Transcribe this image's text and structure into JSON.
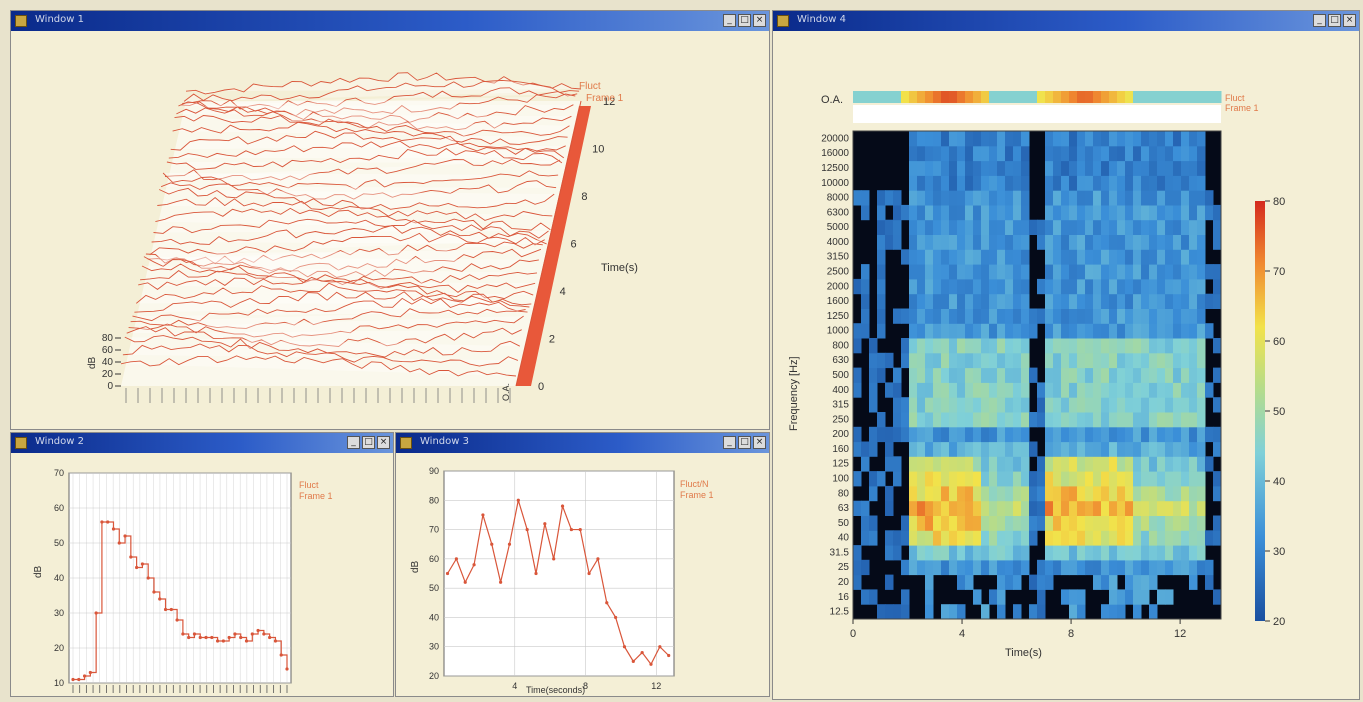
{
  "windows": {
    "w3d": {
      "title": "Window 1"
    },
    "ws1": {
      "title": "Window 2"
    },
    "ws2": {
      "title": "Window 3"
    },
    "wsp": {
      "title": "Window 4"
    }
  },
  "controls": {
    "min": "_",
    "max": "□",
    "close": "×"
  },
  "plot3d": {
    "legend": [
      "Fluct",
      "Frame 1"
    ],
    "zlabel": "dB",
    "ylabel": "Time(s)",
    "zticks": [
      "0",
      "20",
      "40",
      "60",
      "80"
    ],
    "yticks": [
      "0",
      "2",
      "4",
      "6",
      "8",
      "10",
      "12"
    ],
    "oa_label": "O.A.",
    "num_time_slices": 35
  },
  "colors": {
    "trace": "#d9563a",
    "bg": "#f4efd6",
    "grid": "#c9c9c9"
  },
  "chart_data": [
    {
      "type": "line",
      "title": "",
      "legend": [
        "Fluct",
        "Frame 1"
      ],
      "xlabel": "",
      "ylabel": "dB",
      "ylim": [
        10,
        70
      ],
      "yticks": [
        "10",
        "20",
        "30",
        "40",
        "50",
        "60",
        "70"
      ],
      "series": [
        {
          "values": [
            11,
            11,
            12,
            13,
            30,
            56,
            56,
            54,
            50,
            52,
            46,
            43,
            44,
            40,
            36,
            34,
            31,
            31,
            28,
            24,
            23,
            24,
            23,
            23,
            23,
            22,
            22,
            23,
            24,
            23,
            22,
            24,
            25,
            24,
            23,
            22,
            18,
            14
          ]
        }
      ]
    },
    {
      "type": "line",
      "title": "",
      "legend": [
        "Fluct/N",
        "Frame 1"
      ],
      "xlabel": "Time(seconds)",
      "ylabel": "dB",
      "ylim": [
        20,
        90
      ],
      "xlim": [
        0,
        13
      ],
      "xticks": [
        "4",
        "8",
        "12"
      ],
      "yticks": [
        "20",
        "30",
        "40",
        "50",
        "60",
        "70",
        "80",
        "90"
      ],
      "series": [
        {
          "x": [
            0.2,
            0.7,
            1.2,
            1.7,
            2.2,
            2.7,
            3.2,
            3.7,
            4.2,
            4.7,
            5.2,
            5.7,
            6.2,
            6.7,
            7.2,
            7.7,
            8.2,
            8.7,
            9.2,
            9.7,
            10.2,
            10.7,
            11.2,
            11.7,
            12.2,
            12.7
          ],
          "y": [
            55,
            60,
            52,
            58,
            75,
            65,
            52,
            65,
            80,
            70,
            55,
            72,
            60,
            78,
            70,
            70,
            55,
            60,
            45,
            40,
            30,
            25,
            28,
            24,
            30,
            27
          ]
        }
      ]
    },
    {
      "type": "heatmap",
      "title": "",
      "legend": [
        "Fluct",
        "Frame 1"
      ],
      "xlabel": "Time(s)",
      "ylabel": "Frequency [Hz]",
      "xlim": [
        0,
        13.5
      ],
      "xticks": [
        "0",
        "4",
        "8",
        "12"
      ],
      "colorbar": {
        "min": 20,
        "max": 80,
        "ticks": [
          "20",
          "30",
          "40",
          "50",
          "60",
          "70",
          "80"
        ]
      },
      "oa_label": "O.A.",
      "frequency_bands": [
        "12.5",
        "16",
        "20",
        "25",
        "31.5",
        "40",
        "50",
        "63",
        "80",
        "100",
        "125",
        "160",
        "200",
        "250",
        "315",
        "400",
        "500",
        "630",
        "800",
        "1000",
        "1250",
        "1600",
        "2000",
        "2500",
        "3150",
        "4000",
        "5000",
        "6300",
        "8000",
        "10000",
        "12500",
        "16000",
        "20000"
      ]
    }
  ]
}
